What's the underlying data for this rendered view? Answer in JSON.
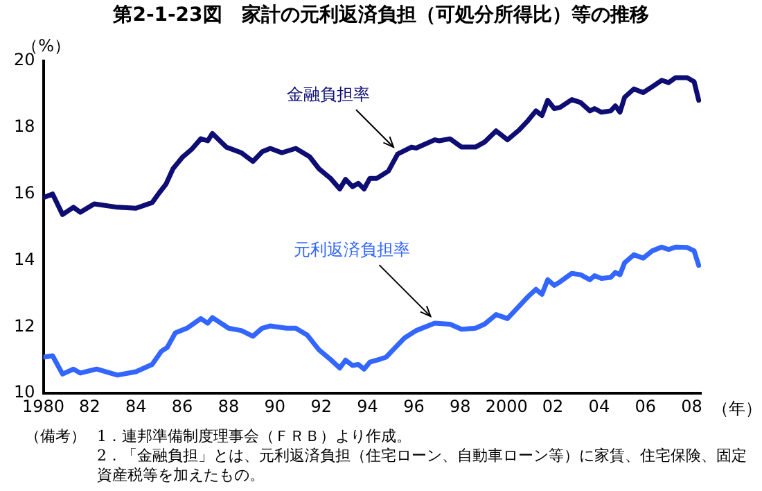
{
  "chart_data": {
    "type": "line",
    "title": "第2-1-23図　家計の元利返済負担（可処分所得比）等の推移",
    "ylabel": "（%）",
    "xlabel": "（年）",
    "xlim": [
      1980,
      2008.4
    ],
    "xticks": [
      {
        "value": 1980,
        "label": "1980"
      },
      {
        "value": 1982,
        "label": "82"
      },
      {
        "value": 1984,
        "label": "84"
      },
      {
        "value": 1986,
        "label": "86"
      },
      {
        "value": 1988,
        "label": "88"
      },
      {
        "value": 1990,
        "label": "90"
      },
      {
        "value": 1992,
        "label": "92"
      },
      {
        "value": 1994,
        "label": "94"
      },
      {
        "value": 1996,
        "label": "96"
      },
      {
        "value": 1998,
        "label": "98"
      },
      {
        "value": 2000,
        "label": "2000"
      },
      {
        "value": 2002,
        "label": "02"
      },
      {
        "value": 2004,
        "label": "04"
      },
      {
        "value": 2006,
        "label": "06"
      },
      {
        "value": 2008,
        "label": "08"
      }
    ],
    "ylim": [
      10,
      20
    ],
    "yticks": [
      10,
      12,
      14,
      16,
      18,
      20
    ],
    "grid": false,
    "legend": false,
    "marker": "none",
    "line_style": "solid",
    "series": [
      {
        "name": "金融負担率",
        "color": "#0d0d73",
        "x": [
          1980.0,
          1980.4,
          1980.83,
          1981.3,
          1981.6,
          1982.2,
          1983.2,
          1984.0,
          1984.7,
          1985.0,
          1985.3,
          1985.6,
          1986.0,
          1986.4,
          1986.8,
          1987.1,
          1987.3,
          1987.9,
          1988.55,
          1989.05,
          1989.45,
          1989.8,
          1990.3,
          1990.9,
          1991.5,
          1991.9,
          1992.4,
          1992.8,
          1993.05,
          1993.35,
          1993.6,
          1993.85,
          1994.1,
          1994.4,
          1994.9,
          1995.3,
          1995.9,
          1996.1,
          1996.9,
          1997.1,
          1997.56,
          1998.06,
          1998.66,
          1999.05,
          1999.55,
          2000.04,
          2000.54,
          2000.93,
          2001.27,
          2001.53,
          2001.78,
          2002.06,
          2002.3,
          2002.82,
          2003.2,
          2003.6,
          2003.8,
          2004.1,
          2004.5,
          2004.7,
          2004.9,
          2005.1,
          2005.5,
          2005.9,
          2006.3,
          2006.7,
          2007.0,
          2007.3,
          2007.8,
          2008.1,
          2008.3
        ],
        "values": [
          15.89,
          16.0,
          15.38,
          15.6,
          15.45,
          15.7,
          15.6,
          15.57,
          15.74,
          16.03,
          16.3,
          16.76,
          17.1,
          17.34,
          17.66,
          17.6,
          17.82,
          17.41,
          17.24,
          16.98,
          17.27,
          17.37,
          17.24,
          17.37,
          17.12,
          16.76,
          16.47,
          16.15,
          16.44,
          16.22,
          16.32,
          16.15,
          16.47,
          16.47,
          16.69,
          17.2,
          17.41,
          17.38,
          17.63,
          17.6,
          17.66,
          17.41,
          17.41,
          17.56,
          17.9,
          17.63,
          17.92,
          18.21,
          18.5,
          18.36,
          18.82,
          18.57,
          18.6,
          18.84,
          18.75,
          18.5,
          18.57,
          18.46,
          18.5,
          18.65,
          18.46,
          18.91,
          19.16,
          19.05,
          19.23,
          19.42,
          19.35,
          19.5,
          19.5,
          19.38,
          18.82
        ]
      },
      {
        "name": "元利返済負担率",
        "color": "#3366ff",
        "x": [
          1980.0,
          1980.4,
          1980.83,
          1981.3,
          1981.6,
          1982.3,
          1983.2,
          1984.0,
          1984.7,
          1985.1,
          1985.35,
          1985.7,
          1986.2,
          1986.8,
          1987.1,
          1987.3,
          1988.0,
          1988.55,
          1989.05,
          1989.45,
          1989.8,
          1990.5,
          1990.9,
          1991.4,
          1991.9,
          1992.4,
          1992.8,
          1993.05,
          1993.35,
          1993.6,
          1993.85,
          1994.1,
          1994.5,
          1994.8,
          1995.6,
          1996.1,
          1996.9,
          1997.56,
          1998.06,
          1998.66,
          1999.05,
          1999.55,
          2000.04,
          2000.54,
          2000.93,
          2001.27,
          2001.53,
          2001.78,
          2002.06,
          2002.3,
          2002.82,
          2003.2,
          2003.6,
          2003.8,
          2004.1,
          2004.5,
          2004.7,
          2004.9,
          2005.1,
          2005.5,
          2005.9,
          2006.3,
          2006.7,
          2007.0,
          2007.3,
          2007.8,
          2008.1,
          2008.3
        ],
        "values": [
          11.09,
          11.13,
          10.58,
          10.73,
          10.61,
          10.73,
          10.55,
          10.65,
          10.87,
          11.27,
          11.38,
          11.82,
          11.96,
          12.25,
          12.11,
          12.28,
          11.96,
          11.89,
          11.72,
          11.96,
          12.03,
          11.96,
          11.96,
          11.75,
          11.31,
          11.02,
          10.76,
          11.0,
          10.84,
          10.87,
          10.73,
          10.94,
          11.02,
          11.09,
          11.67,
          11.89,
          12.11,
          12.08,
          11.93,
          11.96,
          12.08,
          12.37,
          12.25,
          12.62,
          12.91,
          13.13,
          12.98,
          13.42,
          13.25,
          13.35,
          13.61,
          13.57,
          13.42,
          13.54,
          13.46,
          13.49,
          13.64,
          13.57,
          13.93,
          14.17,
          14.07,
          14.29,
          14.4,
          14.33,
          14.4,
          14.39,
          14.29,
          13.85
        ]
      }
    ],
    "annotations": [
      "（備考）",
      "1．連邦準備制度理事会（ＦＲＢ）より作成。",
      "2．「金融負担」とは、元利返済負担（住宅ローン、自動車ローン等）に家賃、住宅保険、固定資産税等を加えたもの。"
    ]
  }
}
